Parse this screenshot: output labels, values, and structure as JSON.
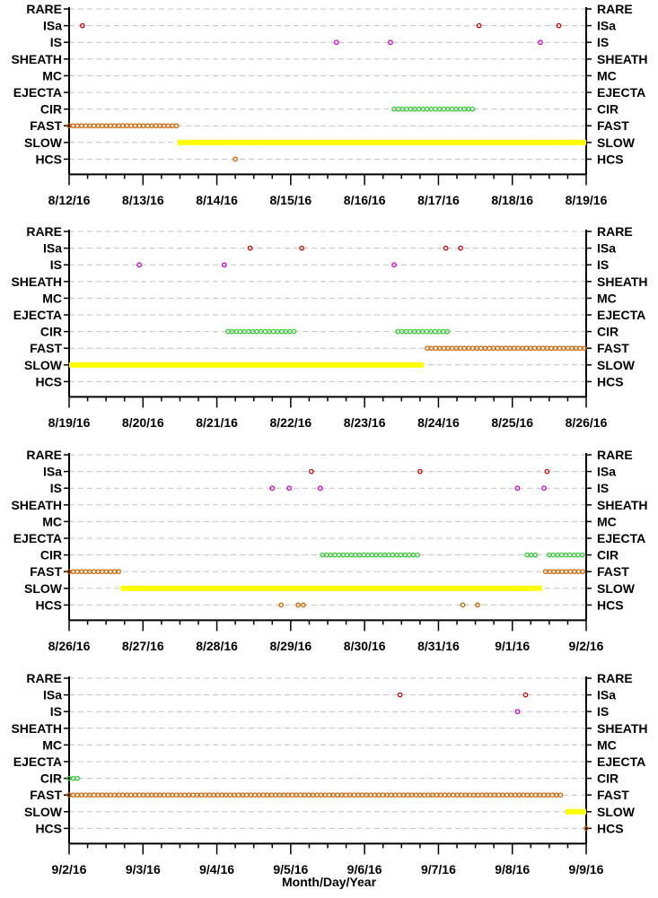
{
  "chart_data": {
    "type": "scatter",
    "categories": [
      "RARE",
      "ISa",
      "IS",
      "SHEATH",
      "MC",
      "EJECTA",
      "CIR",
      "FAST",
      "SLOW",
      "HCS"
    ],
    "xlabel": "Month/Day/Year",
    "colors": {
      "ISa": "#cc0000",
      "IS": "#cc00cc",
      "CIR": "#33cc33",
      "FAST": "#cc6600",
      "SLOW": "#ffff00",
      "HCS": "#cc6600"
    },
    "panels": [
      {
        "xlim": [
          0,
          7
        ],
        "tick_labels": [
          "8/12/16",
          "8/13/16",
          "8/14/16",
          "8/15/16",
          "8/16/16",
          "8/17/16",
          "8/18/16",
          "8/19/16"
        ],
        "series": [
          {
            "category": "ISa",
            "points": [
              0.18,
              5.55,
              6.63
            ]
          },
          {
            "category": "IS",
            "points": [
              3.62,
              4.35,
              6.38
            ]
          },
          {
            "category": "CIR",
            "ranges": [
              [
                4.4,
                5.5
              ]
            ]
          },
          {
            "category": "FAST",
            "ranges": [
              [
                0.0,
                1.47
              ]
            ]
          },
          {
            "category": "SLOW",
            "bars": [
              [
                1.47,
                7.0
              ]
            ]
          },
          {
            "category": "HCS",
            "points": [
              2.25
            ]
          }
        ]
      },
      {
        "xlim": [
          0,
          7
        ],
        "tick_labels": [
          "8/19/16",
          "8/20/16",
          "8/21/16",
          "8/22/16",
          "8/23/16",
          "8/24/16",
          "8/25/16",
          "8/26/16"
        ],
        "series": [
          {
            "category": "ISa",
            "points": [
              2.45,
              3.15,
              5.1,
              5.3
            ]
          },
          {
            "category": "IS",
            "points": [
              0.95,
              2.1,
              4.4
            ]
          },
          {
            "category": "CIR",
            "ranges": [
              [
                2.15,
                3.1
              ],
              [
                4.45,
                5.15
              ]
            ]
          },
          {
            "category": "FAST",
            "ranges": [
              [
                4.85,
                7.0
              ]
            ]
          },
          {
            "category": "SLOW",
            "bars": [
              [
                0.0,
                4.8
              ]
            ]
          }
        ]
      },
      {
        "xlim": [
          0,
          7
        ],
        "tick_labels": [
          "8/26/16",
          "8/27/16",
          "8/28/16",
          "8/29/16",
          "8/30/16",
          "8/31/16",
          "9/1/16",
          "9/2/16"
        ],
        "series": [
          {
            "category": "ISa",
            "points": [
              3.28,
              4.75,
              6.47
            ]
          },
          {
            "category": "IS",
            "points": [
              2.75,
              2.98,
              3.4,
              6.07,
              6.43
            ]
          },
          {
            "category": "CIR",
            "ranges": [
              [
                3.43,
                4.75
              ],
              [
                6.2,
                6.35
              ],
              [
                6.5,
                7.0
              ]
            ]
          },
          {
            "category": "FAST",
            "ranges": [
              [
                0.0,
                0.68
              ],
              [
                6.45,
                7.0
              ]
            ]
          },
          {
            "category": "SLOW",
            "bars": [
              [
                0.7,
                6.4
              ]
            ]
          },
          {
            "category": "HCS",
            "points": [
              2.87,
              3.1,
              3.17,
              5.33,
              5.53
            ]
          }
        ]
      },
      {
        "xlim": [
          0,
          7
        ],
        "tick_labels": [
          "9/2/16",
          "9/3/16",
          "9/4/16",
          "9/5/16",
          "9/6/16",
          "9/7/16",
          "9/8/16",
          "9/9/16"
        ],
        "series": [
          {
            "category": "ISa",
            "points": [
              4.48,
              6.18
            ]
          },
          {
            "category": "IS",
            "points": [
              6.07
            ]
          },
          {
            "category": "CIR",
            "ranges": [
              [
                0.0,
                0.12
              ]
            ]
          },
          {
            "category": "FAST",
            "ranges": [
              [
                0.0,
                6.7
              ]
            ]
          },
          {
            "category": "SLOW",
            "bars": [
              [
                6.72,
                7.0
              ]
            ]
          },
          {
            "category": "HCS",
            "points": [
              7.0
            ]
          }
        ]
      }
    ]
  }
}
